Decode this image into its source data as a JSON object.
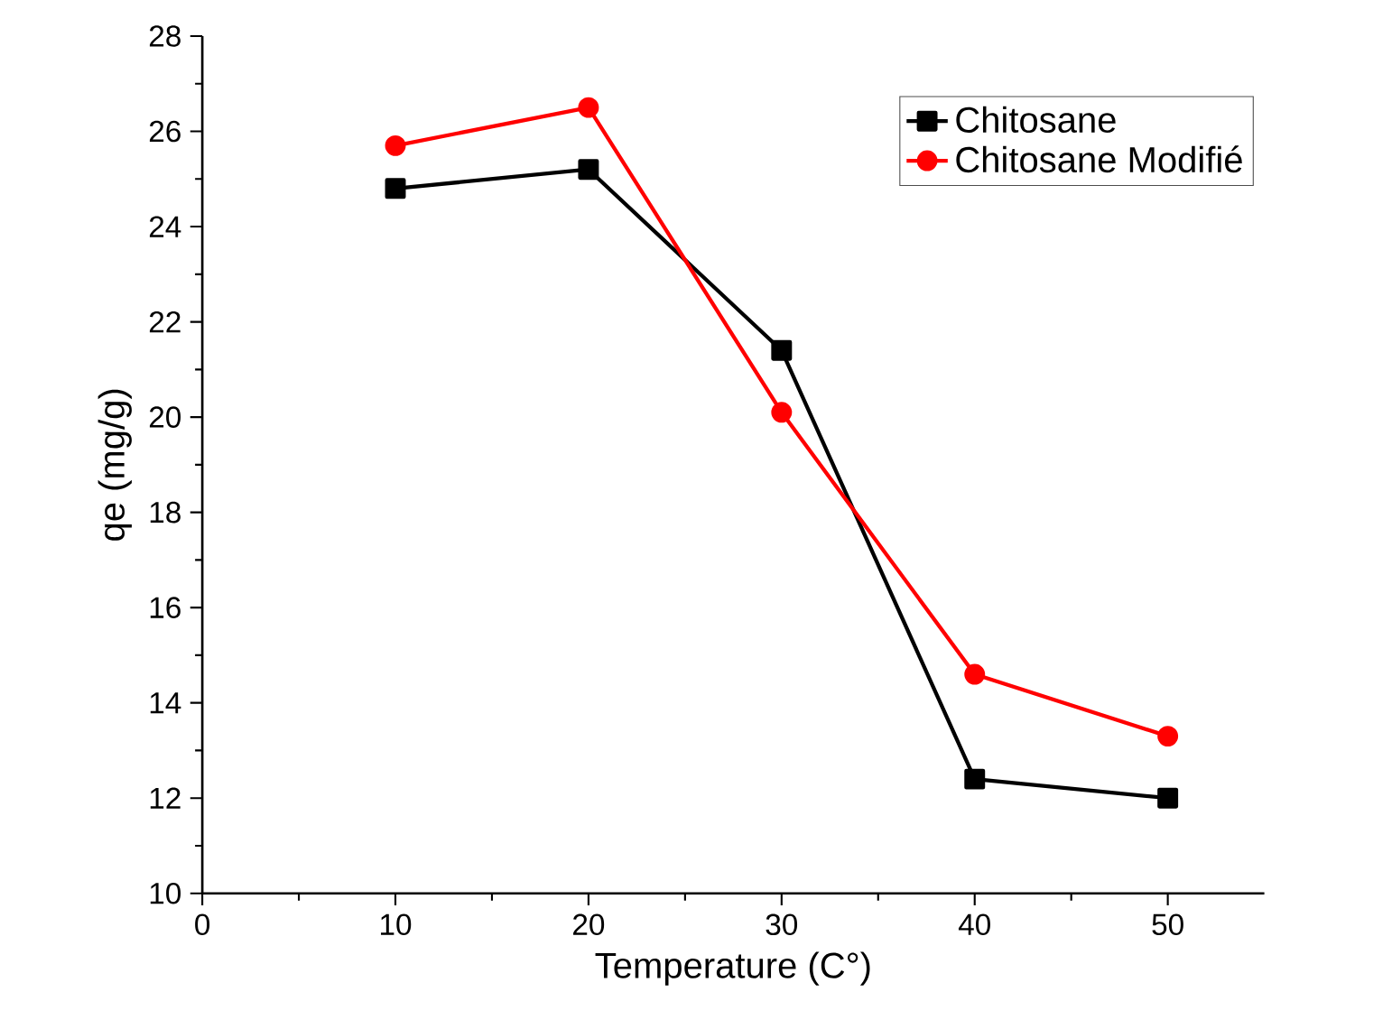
{
  "chart_data": {
    "type": "line",
    "xlabel": "Temperature (C°)",
    "ylabel": "qe (mg/g)",
    "x": [
      10,
      20,
      30,
      40,
      50
    ],
    "series": [
      {
        "name": "Chitosane",
        "color": "#000000",
        "marker": "square",
        "values": [
          24.8,
          25.2,
          21.4,
          12.4,
          12.0
        ]
      },
      {
        "name": "Chitosane Modifié",
        "color": "#ff0000",
        "marker": "circle",
        "values": [
          25.7,
          26.5,
          20.1,
          14.6,
          13.3
        ]
      }
    ],
    "xlim": [
      0,
      55
    ],
    "xticks": [
      0,
      10,
      20,
      30,
      40,
      50
    ],
    "ylim": [
      10,
      28
    ],
    "yticks": [
      10,
      12,
      14,
      16,
      18,
      20,
      22,
      24,
      26,
      28
    ],
    "grid": false,
    "legend": "top right",
    "line_style": "solid"
  }
}
